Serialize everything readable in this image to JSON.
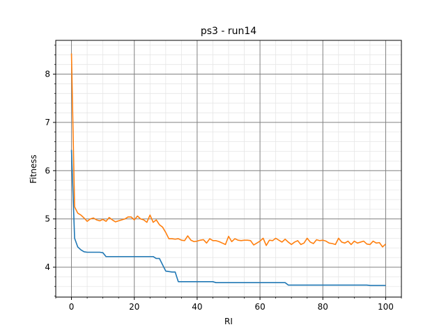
{
  "chart_data": {
    "type": "line",
    "title": "ps3 - run14",
    "xlabel": "RI",
    "ylabel": "Fitness",
    "xlim": [
      -5,
      105
    ],
    "ylim": [
      3.38,
      8.7
    ],
    "xticks": [
      0,
      20,
      40,
      60,
      80,
      100
    ],
    "yticks": [
      4,
      5,
      6,
      7,
      8
    ],
    "grid": {
      "major": true,
      "minor": true
    },
    "series": [
      {
        "color": "#1f77b4",
        "points": [
          [
            0,
            6.43
          ],
          [
            1,
            4.6
          ],
          [
            2,
            4.42
          ],
          [
            3,
            4.36
          ],
          [
            4,
            4.32
          ],
          [
            5,
            4.31
          ],
          [
            6,
            4.31
          ],
          [
            7,
            4.31
          ],
          [
            8,
            4.31
          ],
          [
            9,
            4.31
          ],
          [
            10,
            4.3
          ],
          [
            11,
            4.22
          ],
          [
            12,
            4.22
          ],
          [
            15,
            4.22
          ],
          [
            20,
            4.22
          ],
          [
            25,
            4.22
          ],
          [
            26,
            4.22
          ],
          [
            27,
            4.18
          ],
          [
            28,
            4.18
          ],
          [
            30,
            3.92
          ],
          [
            32,
            3.9
          ],
          [
            33,
            3.9
          ],
          [
            34,
            3.7
          ],
          [
            35,
            3.7
          ],
          [
            40,
            3.7
          ],
          [
            45,
            3.7
          ],
          [
            46,
            3.68
          ],
          [
            50,
            3.68
          ],
          [
            60,
            3.68
          ],
          [
            68,
            3.68
          ],
          [
            69,
            3.63
          ],
          [
            70,
            3.63
          ],
          [
            80,
            3.63
          ],
          [
            90,
            3.63
          ],
          [
            94,
            3.63
          ],
          [
            95,
            3.62
          ],
          [
            100,
            3.62
          ]
        ]
      },
      {
        "color": "#ff7f0e",
        "points": [
          [
            0,
            8.43
          ],
          [
            1,
            5.25
          ],
          [
            2,
            5.12
          ],
          [
            3,
            5.08
          ],
          [
            4,
            5.02
          ],
          [
            5,
            4.95
          ],
          [
            6,
            5.0
          ],
          [
            7,
            5.02
          ],
          [
            8,
            4.98
          ],
          [
            9,
            4.96
          ],
          [
            10,
            4.99
          ],
          [
            11,
            4.95
          ],
          [
            12,
            5.03
          ],
          [
            13,
            4.98
          ],
          [
            14,
            4.94
          ],
          [
            15,
            4.96
          ],
          [
            16,
            4.98
          ],
          [
            17,
            5.0
          ],
          [
            18,
            5.04
          ],
          [
            19,
            5.04
          ],
          [
            20,
            4.98
          ],
          [
            21,
            5.06
          ],
          [
            22,
            5.0
          ],
          [
            23,
            4.98
          ],
          [
            24,
            4.93
          ],
          [
            25,
            5.08
          ],
          [
            26,
            4.93
          ],
          [
            27,
            4.98
          ],
          [
            28,
            4.88
          ],
          [
            29,
            4.83
          ],
          [
            30,
            4.72
          ],
          [
            31,
            4.59
          ],
          [
            32,
            4.59
          ],
          [
            33,
            4.58
          ],
          [
            34,
            4.59
          ],
          [
            35,
            4.56
          ],
          [
            36,
            4.55
          ],
          [
            37,
            4.65
          ],
          [
            38,
            4.56
          ],
          [
            39,
            4.53
          ],
          [
            40,
            4.54
          ],
          [
            41,
            4.56
          ],
          [
            42,
            4.57
          ],
          [
            43,
            4.5
          ],
          [
            44,
            4.59
          ],
          [
            45,
            4.55
          ],
          [
            46,
            4.55
          ],
          [
            47,
            4.53
          ],
          [
            48,
            4.5
          ],
          [
            49,
            4.47
          ],
          [
            50,
            4.64
          ],
          [
            51,
            4.53
          ],
          [
            52,
            4.59
          ],
          [
            53,
            4.56
          ],
          [
            54,
            4.55
          ],
          [
            55,
            4.56
          ],
          [
            56,
            4.56
          ],
          [
            57,
            4.55
          ],
          [
            58,
            4.46
          ],
          [
            59,
            4.5
          ],
          [
            60,
            4.54
          ],
          [
            61,
            4.6
          ],
          [
            62,
            4.45
          ],
          [
            63,
            4.56
          ],
          [
            64,
            4.55
          ],
          [
            65,
            4.6
          ],
          [
            66,
            4.56
          ],
          [
            67,
            4.52
          ],
          [
            68,
            4.58
          ],
          [
            69,
            4.52
          ],
          [
            70,
            4.47
          ],
          [
            71,
            4.52
          ],
          [
            72,
            4.55
          ],
          [
            73,
            4.47
          ],
          [
            74,
            4.5
          ],
          [
            75,
            4.6
          ],
          [
            76,
            4.52
          ],
          [
            77,
            4.49
          ],
          [
            78,
            4.57
          ],
          [
            79,
            4.55
          ],
          [
            80,
            4.56
          ],
          [
            81,
            4.54
          ],
          [
            82,
            4.5
          ],
          [
            83,
            4.49
          ],
          [
            84,
            4.47
          ],
          [
            85,
            4.6
          ],
          [
            86,
            4.52
          ],
          [
            87,
            4.5
          ],
          [
            88,
            4.54
          ],
          [
            89,
            4.47
          ],
          [
            90,
            4.54
          ],
          [
            91,
            4.5
          ],
          [
            92,
            4.52
          ],
          [
            93,
            4.54
          ],
          [
            94,
            4.48
          ],
          [
            95,
            4.47
          ],
          [
            96,
            4.54
          ],
          [
            97,
            4.5
          ],
          [
            98,
            4.51
          ],
          [
            99,
            4.42
          ],
          [
            100,
            4.48
          ]
        ]
      }
    ]
  }
}
